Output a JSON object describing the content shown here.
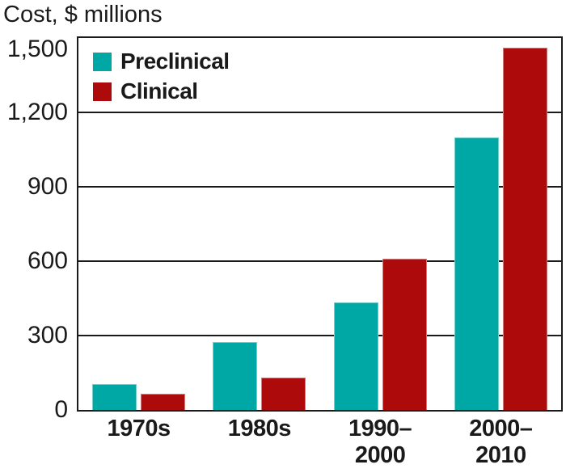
{
  "chart_data": {
    "type": "bar",
    "title": "Cost, $ millions",
    "categories": [
      "1970s",
      "1980s",
      "1990–2000",
      "2000–2010"
    ],
    "category_label_lines": [
      [
        "1970s"
      ],
      [
        "1980s"
      ],
      [
        "1990–",
        "2000"
      ],
      [
        "2000–",
        "2010"
      ]
    ],
    "series": [
      {
        "name": "Preclinical",
        "color": "#00a8a5",
        "values": [
          105,
          275,
          435,
          1100
        ]
      },
      {
        "name": "Clinical",
        "color": "#ad0b0b",
        "values": [
          65,
          130,
          610,
          1460
        ]
      }
    ],
    "ylim": [
      0,
      1500
    ],
    "yticks": [
      0,
      300,
      600,
      900,
      1200,
      1500
    ],
    "ytick_labels": [
      "0",
      "300",
      "600",
      "900",
      "1,200",
      "1,500"
    ],
    "xlabel": "",
    "ylabel": "Cost, $ millions",
    "grid": "horizontal-black-lines",
    "legend_position": "top-left-inside-plot",
    "plot_border": "black-frame"
  },
  "colors": {
    "preclinical": "#00a8a5",
    "clinical": "#ad0b0b",
    "axis": "#1a1a1a",
    "text": "#1a1a1a",
    "background": "#ffffff"
  }
}
